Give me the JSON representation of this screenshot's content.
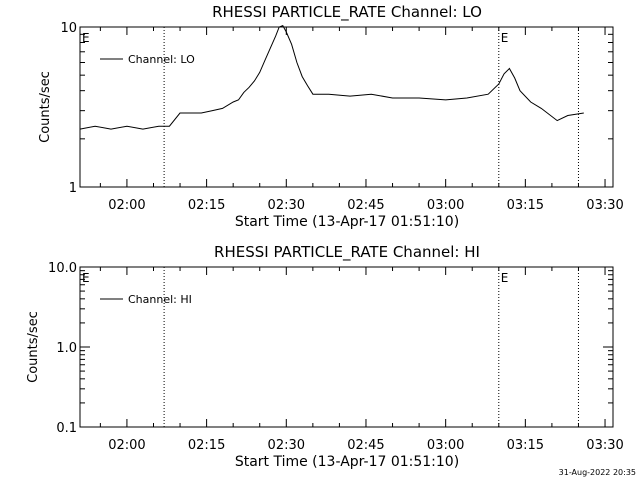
{
  "chart_data": [
    {
      "type": "line",
      "title": "RHESSI PARTICLE_RATE Channel: LO",
      "xlabel": "Start Time (13-Apr-17 01:51:10)",
      "ylabel": "Counts/sec",
      "yscale": "log",
      "ylim": [
        1,
        10
      ],
      "ytick_labels": [
        "1",
        "10"
      ],
      "xlim": [
        "01:51:10",
        "03:31:30"
      ],
      "xtick_labels": [
        "02:00",
        "02:15",
        "02:30",
        "02:45",
        "03:00",
        "03:15",
        "03:30"
      ],
      "grid": false,
      "legend": "top-left",
      "series": [
        {
          "name": "Channel: LO",
          "x": [
            "01:51:10",
            "01:54:00",
            "01:57:00",
            "02:00:00",
            "02:03:00",
            "02:06:00",
            "02:08:00",
            "02:10:00",
            "02:12:00",
            "02:14:00",
            "02:16:00",
            "02:18:00",
            "02:20:00",
            "02:21:00",
            "02:22:00",
            "02:23:00",
            "02:24:00",
            "02:25:00",
            "02:26:00",
            "02:27:00",
            "02:28:00",
            "02:28:40",
            "02:29:20",
            "02:30:00",
            "02:31:00",
            "02:32:00",
            "02:33:00",
            "02:34:00",
            "02:35:00",
            "02:38:00",
            "02:42:00",
            "02:46:00",
            "02:50:00",
            "02:55:00",
            "03:00:00",
            "03:04:00",
            "03:08:00",
            "03:10:00",
            "03:11:00",
            "03:12:00",
            "03:13:00",
            "03:14:00",
            "03:16:00",
            "03:18:00",
            "03:21:00",
            "03:23:00",
            "03:26:00"
          ],
          "y": [
            2.3,
            2.4,
            2.3,
            2.4,
            2.3,
            2.4,
            2.4,
            2.9,
            2.9,
            2.9,
            3.0,
            3.1,
            3.4,
            3.5,
            3.9,
            4.2,
            4.6,
            5.2,
            6.2,
            7.4,
            8.8,
            10.0,
            10.2,
            9.3,
            7.8,
            6.0,
            4.9,
            4.3,
            3.8,
            3.8,
            3.7,
            3.8,
            3.6,
            3.6,
            3.5,
            3.6,
            3.8,
            4.4,
            5.1,
            5.5,
            4.8,
            4.0,
            3.4,
            3.1,
            2.6,
            2.8,
            2.9
          ]
        }
      ],
      "annotations": [
        {
          "text": "E",
          "x": "01:51:10"
        },
        {
          "text": "E",
          "x": "03:10:00"
        }
      ],
      "vlines": [
        "02:07:00",
        "03:10:00",
        "03:25:00"
      ]
    },
    {
      "type": "line",
      "title": "RHESSI PARTICLE_RATE Channel: HI",
      "xlabel": "Start Time (13-Apr-17 01:51:10)",
      "ylabel": "Counts/sec",
      "yscale": "log",
      "ylim": [
        0.1,
        10
      ],
      "ytick_labels": [
        "0.1",
        "1.0",
        "10.0"
      ],
      "xlim": [
        "01:51:10",
        "03:31:30"
      ],
      "xtick_labels": [
        "02:00",
        "02:15",
        "02:30",
        "02:45",
        "03:00",
        "03:15",
        "03:30"
      ],
      "grid": false,
      "legend": "top-left",
      "series": [
        {
          "name": "Channel: HI",
          "x": [],
          "y": []
        }
      ],
      "annotations": [
        {
          "text": "E",
          "x": "01:51:10"
        },
        {
          "text": "E",
          "x": "03:10:00"
        }
      ],
      "vlines": [
        "02:07:00",
        "03:10:00",
        "03:25:00"
      ]
    }
  ],
  "footer": {
    "timestamp": "31-Aug-2022 20:35"
  }
}
